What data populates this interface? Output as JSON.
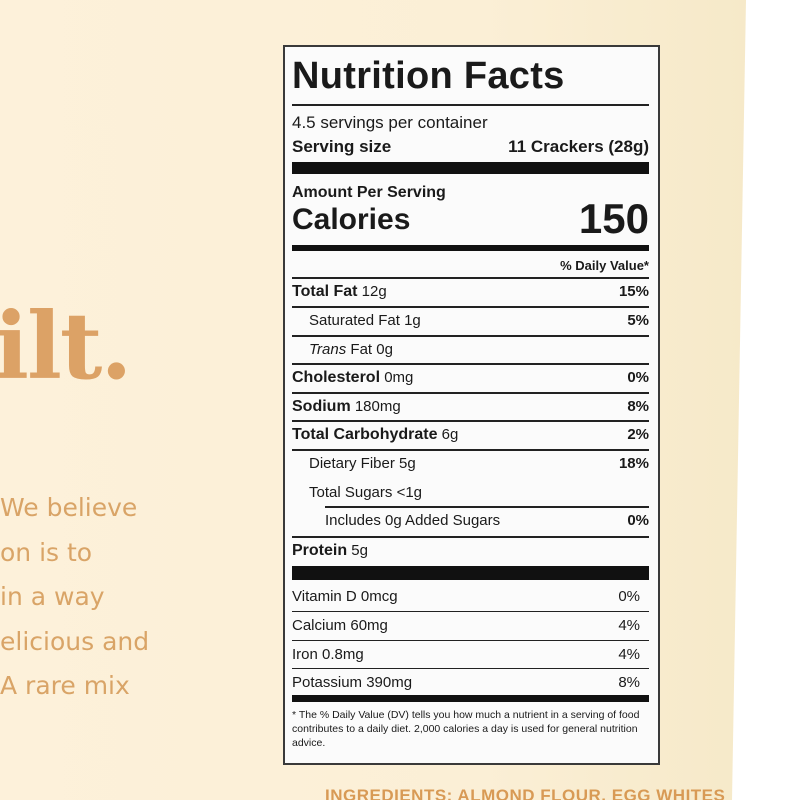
{
  "package": {
    "brand_fragment": "ilt.",
    "copy_lines": [
      "We believe",
      "on is to",
      "in a way",
      "elicious and",
      "A rare mix"
    ],
    "ingredients_fragment": "INGREDIENTS: ALMOND FLOUR, EGG WHITES",
    "accent_color": "#dca266"
  },
  "label": {
    "title": "Nutrition Facts",
    "servings": "4.5 servings per container",
    "serving_size_label": "Serving size",
    "serving_size_value": "11 Crackers (28g)",
    "amount_per_serving": "Amount Per Serving",
    "calories_label": "Calories",
    "calories_value": "150",
    "dv_header": "% Daily Value*",
    "nutrients": [
      {
        "name": "Total Fat",
        "amount": "12g",
        "dv": "15%"
      },
      {
        "name": "Saturated Fat",
        "amount": "1g",
        "dv": "5%"
      },
      {
        "name": "Trans",
        "name_suffix": "Fat",
        "amount": "0g",
        "dv": ""
      },
      {
        "name": "Cholesterol",
        "amount": "0mg",
        "dv": "0%"
      },
      {
        "name": "Sodium",
        "amount": "180mg",
        "dv": "8%"
      },
      {
        "name": "Total Carbohydrate",
        "amount": "6g",
        "dv": "2%"
      },
      {
        "name": "Dietary Fiber",
        "amount": "5g",
        "dv": "18%"
      },
      {
        "name": "Total Sugars",
        "amount": "<1g",
        "dv": ""
      },
      {
        "name": "Includes 0g Added Sugars",
        "amount": "",
        "dv": "0%"
      },
      {
        "name": "Protein",
        "amount": "5g",
        "dv": ""
      }
    ],
    "vitamins": [
      {
        "name": "Vitamin D",
        "amount": "0mcg",
        "dv": "0%"
      },
      {
        "name": "Calcium",
        "amount": "60mg",
        "dv": "4%"
      },
      {
        "name": "Iron",
        "amount": "0.8mg",
        "dv": "4%"
      },
      {
        "name": "Potassium",
        "amount": "390mg",
        "dv": "8%"
      }
    ],
    "footnote": "* The % Daily Value (DV) tells you how much a nutrient in a serving of food contributes to a daily diet. 2,000 calories a day is used for general nutrition advice."
  }
}
